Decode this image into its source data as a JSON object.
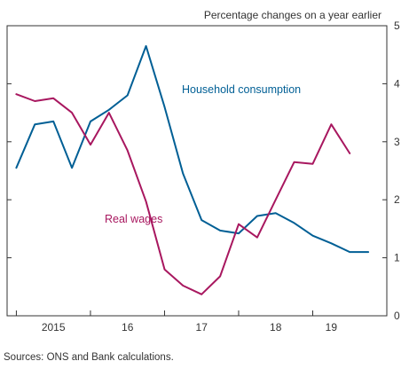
{
  "chart_data": {
    "type": "line",
    "units_label": "Percentage changes on a year earlier",
    "ylim": [
      0,
      5
    ],
    "y_ticks": [
      0,
      1,
      2,
      3,
      4,
      5
    ],
    "y_axis_side": "right",
    "x_ticks": [
      {
        "label": "2015",
        "x": 2015.5
      },
      {
        "label": "16",
        "x": 2016.5
      },
      {
        "label": "17",
        "x": 2017.5
      },
      {
        "label": "18",
        "x": 2018.5
      },
      {
        "label": "19",
        "x": 2019.25
      }
    ],
    "x_year_boundaries": [
      2015,
      2016,
      2017,
      2018,
      2019
    ],
    "xlim": [
      2014.875,
      2020.0
    ],
    "series": [
      {
        "name": "Household consumption",
        "color": "#005f95",
        "x": [
          2015.0,
          2015.25,
          2015.5,
          2015.75,
          2016.0,
          2016.25,
          2016.5,
          2016.75,
          2017.0,
          2017.25,
          2017.5,
          2017.75,
          2018.0,
          2018.25,
          2018.5,
          2018.75,
          2019.0,
          2019.25,
          2019.5,
          2019.75
        ],
        "values": [
          2.55,
          3.3,
          3.35,
          2.55,
          3.35,
          3.55,
          3.8,
          4.65,
          3.6,
          2.45,
          1.65,
          1.47,
          1.42,
          1.72,
          1.77,
          1.6,
          1.38,
          1.25,
          1.1,
          1.1
        ]
      },
      {
        "name": "Real wages",
        "color": "#a8175f",
        "x": [
          2015.0,
          2015.25,
          2015.5,
          2015.75,
          2016.0,
          2016.25,
          2016.5,
          2016.75,
          2017.0,
          2017.25,
          2017.5,
          2017.75,
          2018.0,
          2018.25,
          2018.5,
          2018.75,
          2019.0,
          2019.25,
          2019.5
        ],
        "values": [
          3.82,
          3.7,
          3.75,
          3.5,
          2.95,
          3.5,
          2.85,
          1.97,
          0.8,
          0.52,
          0.37,
          0.68,
          1.58,
          1.35,
          2.0,
          2.65,
          2.62,
          3.3,
          2.8
        ]
      }
    ],
    "annotations": [
      {
        "text": "Household consumption",
        "series": 0
      },
      {
        "text": "Real wages",
        "series": 1
      }
    ],
    "grid": false,
    "legend": "inline labels"
  },
  "source_note": "Sources: ONS and Bank calculations."
}
